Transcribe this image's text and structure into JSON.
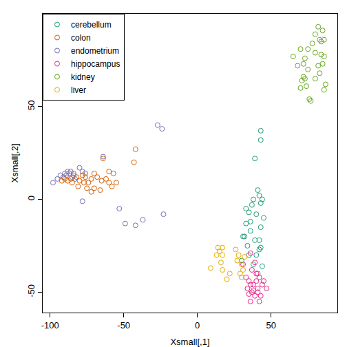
{
  "chart_data": {
    "type": "scatter",
    "x_label": "Xsmall[,1]",
    "y_label": "Xsmall[,2]",
    "xlim": [
      -105,
      95
    ],
    "ylim": [
      -61,
      100
    ],
    "xticks": [
      -100,
      -50,
      0,
      50
    ],
    "yticks": [
      -50,
      0,
      50
    ],
    "grid": false,
    "legend": "top-left",
    "marker": "open circle",
    "series": [
      {
        "name": "cerebellum",
        "color": "#1B9E77",
        "x": [
          43,
          43,
          39,
          41,
          42,
          44,
          43,
          38,
          37,
          35,
          40,
          36,
          33,
          31,
          32,
          39,
          42,
          43,
          36,
          42,
          43,
          40,
          35,
          30,
          38,
          41,
          44,
          34,
          45,
          33
        ],
        "values": [
          37,
          32,
          22,
          5,
          2,
          0,
          -2,
          0,
          -3,
          -7,
          -8,
          -12,
          -13,
          -20,
          -20,
          -22,
          -22,
          -15,
          -17,
          -27,
          -26,
          -30,
          -30,
          -33,
          -35,
          -40,
          -36,
          -25,
          -10,
          -5
        ]
      },
      {
        "name": "colon",
        "color": "#D95F02",
        "x": [
          -42,
          -43,
          -64,
          -57,
          -60,
          -62,
          -65,
          -68,
          -70,
          -72,
          -74,
          -76,
          -78,
          -80,
          -82,
          -84,
          -86,
          -88,
          -90,
          -92,
          -70,
          -72,
          -66,
          -60,
          -58,
          -55,
          -75,
          -81,
          -85,
          -77
        ],
        "values": [
          27,
          20,
          22,
          14,
          15,
          11,
          10,
          12,
          14,
          11,
          9,
          12,
          13,
          10,
          12,
          14,
          11,
          10,
          11,
          10,
          6,
          4,
          5,
          9,
          7,
          9,
          6,
          7,
          9,
          9
        ]
      },
      {
        "name": "endometrium",
        "color": "#7570B3",
        "x": [
          -98,
          -95,
          -93,
          -91,
          -89,
          -87,
          -86,
          -84,
          -88,
          -90,
          -80,
          -78,
          -76,
          -78,
          -64,
          -27,
          -24,
          -53,
          -49,
          -42,
          -37,
          -23,
          -85,
          -83
        ],
        "values": [
          9,
          11,
          13,
          12,
          13,
          14,
          15,
          13,
          15,
          14,
          17,
          15,
          14,
          -1,
          23,
          40,
          38,
          -5,
          -13,
          -14,
          -11,
          -8,
          12,
          11
        ]
      },
      {
        "name": "hippocampus",
        "color": "#E7298A",
        "x": [
          36,
          39,
          37,
          40,
          42,
          35,
          38,
          41,
          44,
          47,
          37,
          39,
          35,
          36,
          38,
          41,
          43,
          34,
          33,
          31,
          40,
          45,
          36,
          42
        ],
        "values": [
          -29,
          -34,
          -38,
          -40,
          -42,
          -44,
          -46,
          -48,
          -46,
          -48,
          -50,
          -52,
          -51,
          -55,
          -49,
          -50,
          -52,
          -48,
          -42,
          -35,
          -44,
          -44,
          -46,
          -55
        ]
      },
      {
        "name": "kidney",
        "color": "#66A61E",
        "x": [
          82,
          85,
          80,
          83,
          84,
          86,
          78,
          75,
          80,
          70,
          65,
          73,
          84,
          86,
          72,
          68,
          82,
          85,
          75,
          72,
          73,
          71,
          74,
          80,
          83,
          76,
          77,
          70,
          86,
          87
        ],
        "values": [
          93,
          91,
          89,
          86,
          85,
          86,
          84,
          81,
          79,
          81,
          77,
          76,
          78,
          77,
          73,
          72,
          72,
          73,
          70,
          66,
          65,
          64,
          61,
          65,
          68,
          54,
          53,
          60,
          59,
          62
        ]
      },
      {
        "name": "liver",
        "color": "#E6AB02",
        "x": [
          14,
          17,
          15,
          17,
          13,
          26,
          28,
          30,
          27,
          31,
          16,
          9,
          17,
          22,
          20,
          30,
          29,
          32
        ],
        "values": [
          -26,
          -26,
          -28,
          -30,
          -30,
          -27,
          -30,
          -35,
          -33,
          -38,
          -34,
          -37,
          -38,
          -40,
          -43,
          -42,
          -40,
          -31
        ]
      }
    ]
  }
}
